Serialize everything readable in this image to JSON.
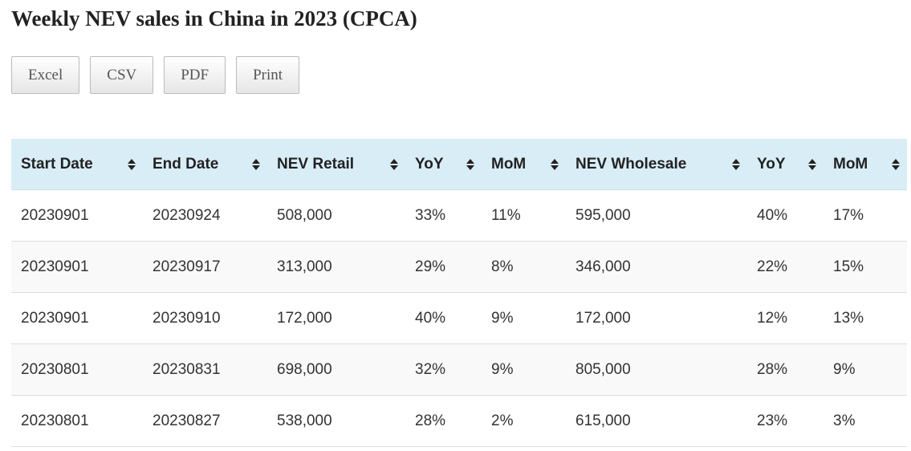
{
  "header": {
    "title": "Weekly NEV sales in China in 2023 (CPCA)"
  },
  "buttons": [
    "Excel",
    "CSV",
    "PDF",
    "Print"
  ],
  "table": {
    "columns": [
      "Start Date",
      "End Date",
      "NEV Retail",
      "YoY",
      "MoM",
      "NEV Wholesale",
      "YoY",
      "MoM"
    ],
    "rows": [
      [
        "20230901",
        "20230924",
        "508,000",
        "33%",
        "11%",
        "595,000",
        "40%",
        "17%"
      ],
      [
        "20230901",
        "20230917",
        "313,000",
        "29%",
        "8%",
        "346,000",
        "22%",
        "15%"
      ],
      [
        "20230901",
        "20230910",
        "172,000",
        "40%",
        "9%",
        "172,000",
        "12%",
        "13%"
      ],
      [
        "20230801",
        "20230831",
        "698,000",
        "32%",
        "9%",
        "805,000",
        "28%",
        "9%"
      ],
      [
        "20230801",
        "20230827",
        "538,000",
        "28%",
        "2%",
        "615,000",
        "23%",
        "3%"
      ]
    ]
  }
}
